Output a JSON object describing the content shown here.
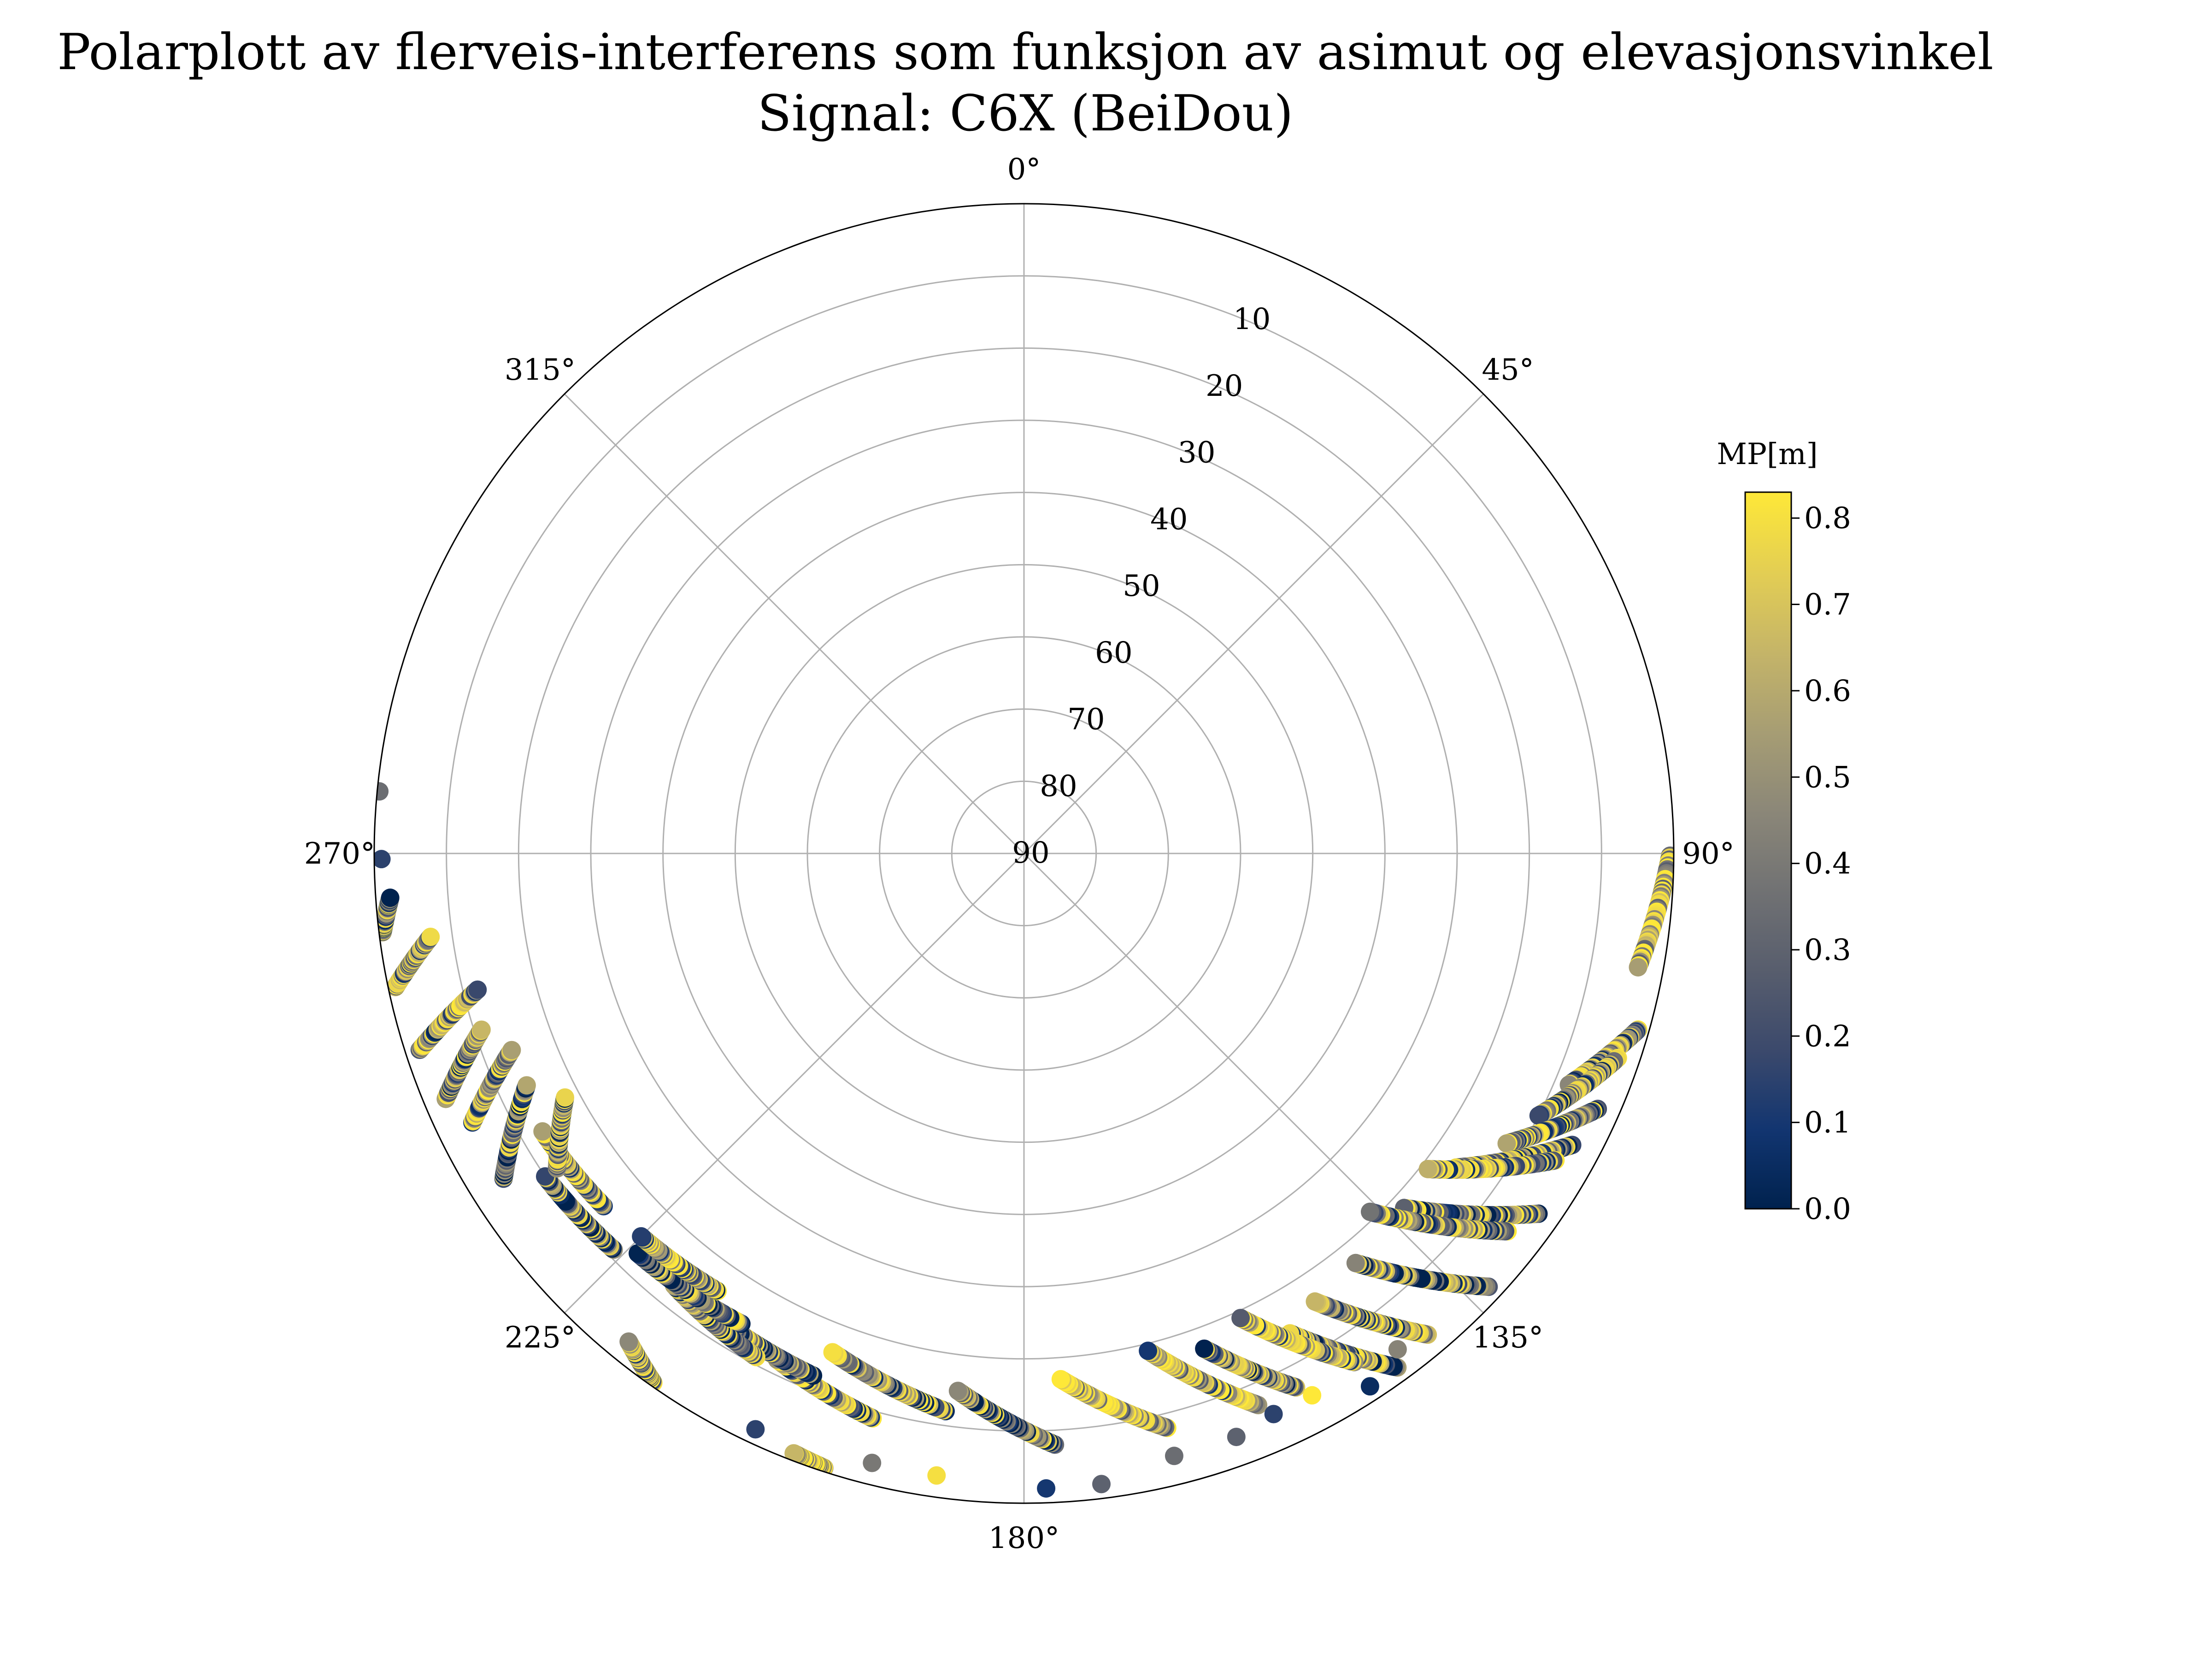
{
  "chart_data": {
    "type": "scatter",
    "projection": "polar",
    "title": "Polarplott av flerveis-interferens som funksjon av asimut og elevasjonsvinkel",
    "subtitle": "Signal: C6X (BeiDou)",
    "theta_direction": "clockwise",
    "theta_zero": "top",
    "theta_ticks": [
      "0°",
      "45°",
      "90°",
      "135°",
      "180°",
      "225°",
      "270°",
      "315°"
    ],
    "theta_tick_values": [
      0,
      45,
      90,
      135,
      180,
      225,
      270,
      315
    ],
    "radial_axis": "elevation",
    "radial_ticks": [
      "10",
      "20",
      "30",
      "40",
      "50",
      "60",
      "70",
      "80",
      "90"
    ],
    "radial_tick_values": [
      10,
      20,
      30,
      40,
      50,
      60,
      70,
      80,
      90
    ],
    "elevation_range": [
      0,
      90
    ],
    "grid": true,
    "colorbar": {
      "label": "MP[m]",
      "range": [
        0.0,
        0.83
      ],
      "ticks": [
        "0.0",
        "0.1",
        "0.2",
        "0.3",
        "0.4",
        "0.5",
        "0.6",
        "0.7",
        "0.8"
      ],
      "tick_values": [
        0.0,
        0.1,
        0.2,
        0.3,
        0.4,
        0.5,
        0.6,
        0.7,
        0.8
      ],
      "colormap": "cividis",
      "colors": [
        "#00224e",
        "#123570",
        "#3b496c",
        "#575d6d",
        "#707173",
        "#8a8678",
        "#a59c74",
        "#c3b369",
        "#e1cc55",
        "#fee838"
      ]
    },
    "tracks": [
      {
        "az_start": 90.2,
        "az_end": 100.5,
        "el_start": 0.5,
        "el_end": 3.5,
        "mp_mean": 0.7
      },
      {
        "az_start": 106,
        "az_end": 113,
        "el_start": 1.5,
        "el_end": 8,
        "mp_mean": 0.35
      },
      {
        "az_start": 109,
        "az_end": 117,
        "el_start": 3,
        "el_end": 10,
        "mp_mean": 0.4
      },
      {
        "az_start": 114,
        "az_end": 121,
        "el_start": 3,
        "el_end": 12,
        "mp_mean": 0.45
      },
      {
        "az_start": 118,
        "az_end": 126,
        "el_start": 4,
        "el_end": 16,
        "mp_mean": 0.4
      },
      {
        "az_start": 120,
        "az_end": 128,
        "el_start": 5,
        "el_end": 19,
        "mp_mean": 0.5
      },
      {
        "az_start": 125,
        "az_end": 133,
        "el_start": 3,
        "el_end": 18,
        "mp_mean": 0.35
      },
      {
        "az_start": 128,
        "az_end": 136,
        "el_start": 5,
        "el_end": 21,
        "mp_mean": 0.45
      },
      {
        "az_start": 133,
        "az_end": 141,
        "el_start": 2,
        "el_end": 17,
        "mp_mean": 0.3
      },
      {
        "az_start": 140,
        "az_end": 147,
        "el_start": 3,
        "el_end": 16,
        "mp_mean": 0.45
      },
      {
        "az_start": 144,
        "az_end": 151,
        "el_start": 2,
        "el_end": 14,
        "mp_mean": 0.3
      },
      {
        "az_start": 147,
        "az_end": 155,
        "el_start": 6,
        "el_end": 19,
        "mp_mean": 0.55
      },
      {
        "az_start": 153,
        "az_end": 160,
        "el_start": 7,
        "el_end": 17,
        "mp_mean": 0.35
      },
      {
        "az_start": 157,
        "az_end": 166,
        "el_start": 7,
        "el_end": 19,
        "mp_mean": 0.5
      },
      {
        "az_start": 166,
        "az_end": 176,
        "el_start": 8,
        "el_end": 17,
        "mp_mean": 0.6
      },
      {
        "az_start": 177,
        "az_end": 187,
        "el_start": 8,
        "el_end": 15,
        "mp_mean": 0.3
      },
      {
        "az_start": 188,
        "az_end": 201,
        "el_start": 12,
        "el_end": 16,
        "mp_mean": 0.4
      },
      {
        "az_start": 195,
        "az_end": 206,
        "el_start": 9,
        "el_end": 12,
        "mp_mean": 0.45
      },
      {
        "az_start": 202,
        "az_end": 214,
        "el_start": 12,
        "el_end": 13,
        "mp_mean": 0.25
      },
      {
        "az_start": 208,
        "az_end": 219,
        "el_start": 11,
        "el_end": 13,
        "mp_mean": 0.4
      },
      {
        "az_start": 211,
        "az_end": 224,
        "el_start": 14,
        "el_end": 13,
        "mp_mean": 0.3
      },
      {
        "az_start": 215,
        "az_end": 225,
        "el_start": 16,
        "el_end": 15,
        "mp_mean": 0.45
      },
      {
        "az_start": 226,
        "az_end": 236,
        "el_start": 11,
        "el_end": 10,
        "mp_mean": 0.35
      },
      {
        "az_start": 230,
        "az_end": 240,
        "el_start": 14,
        "el_end": 13,
        "mp_mean": 0.5
      },
      {
        "az_start": 236,
        "az_end": 242,
        "el_start": 12,
        "el_end": 18,
        "mp_mean": 0.4
      },
      {
        "az_start": 238,
        "az_end": 245,
        "el_start": 5,
        "el_end": 14,
        "mp_mean": 0.2
      },
      {
        "az_start": 244,
        "az_end": 249,
        "el_start": 5,
        "el_end": 14,
        "mp_mean": 0.5
      },
      {
        "az_start": 247,
        "az_end": 252,
        "el_start": 3,
        "el_end": 11,
        "mp_mean": 0.3
      },
      {
        "az_start": 252,
        "az_end": 256,
        "el_start": 2,
        "el_end": 12,
        "mp_mean": 0.45
      },
      {
        "az_start": 258,
        "az_end": 262,
        "el_start": 1,
        "el_end": 7,
        "mp_mean": 0.5
      },
      {
        "az_start": 263,
        "az_end": 266,
        "el_start": 0.5,
        "el_end": 2,
        "mp_mean": 0.3
      },
      {
        "az_start": 215,
        "az_end": 219,
        "el_start": 0.5,
        "el_end": 3,
        "mp_mean": 0.5
      },
      {
        "az_start": 198,
        "az_end": 201,
        "el_start": 0.5,
        "el_end": 1,
        "mp_mean": 0.7
      }
    ],
    "points": [
      {
        "az": 269.5,
        "el": 1,
        "mp": 0.15
      },
      {
        "az": 275.5,
        "el": 0.3,
        "mp": 0.35
      },
      {
        "az": 205,
        "el": 2,
        "mp": 0.15
      },
      {
        "az": 194,
        "el": 3,
        "mp": 0.4
      },
      {
        "az": 188,
        "el": 3,
        "mp": 0.8
      },
      {
        "az": 178,
        "el": 2,
        "mp": 0.1
      },
      {
        "az": 173,
        "el": 2,
        "mp": 0.3
      },
      {
        "az": 166,
        "el": 4,
        "mp": 0.35
      },
      {
        "az": 160,
        "el": 4,
        "mp": 0.3
      },
      {
        "az": 156,
        "el": 5,
        "mp": 0.15
      },
      {
        "az": 152,
        "el": 5,
        "mp": 0.85
      },
      {
        "az": 147,
        "el": 2,
        "mp": 0.05
      },
      {
        "az": 143,
        "el": 4,
        "mp": 0.45
      }
    ]
  }
}
